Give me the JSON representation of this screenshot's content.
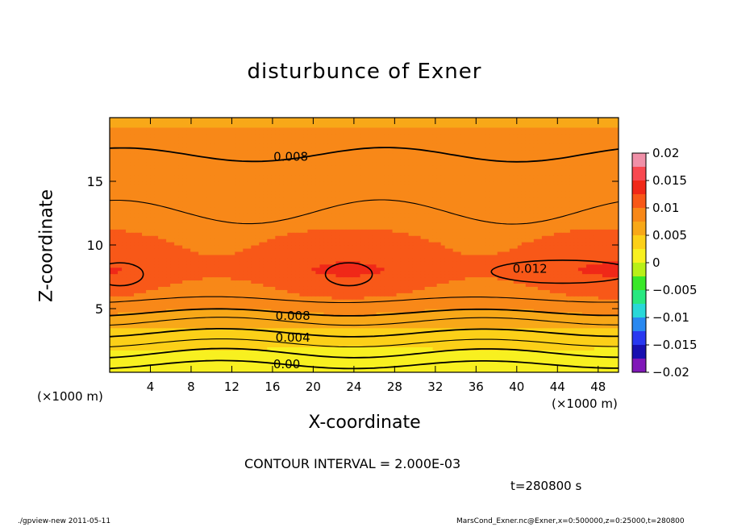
{
  "chart_data": {
    "type": "heatmap",
    "title": "disturbunce of Exner",
    "xlabel": "X-coordinate",
    "ylabel": "Z-coordinate",
    "x_unit_left": "(×1000 m)",
    "x_unit_right": "(×1000 m)",
    "xlim": [
      0,
      50
    ],
    "ylim": [
      0,
      20
    ],
    "x_ticks": [
      4,
      8,
      12,
      16,
      20,
      24,
      28,
      32,
      36,
      40,
      44,
      48
    ],
    "y_ticks": [
      5,
      10,
      15
    ],
    "contour_interval": "CONTOUR INTERVAL = 2.000E-03",
    "contour_labels": [
      {
        "text": "0.008",
        "x": 17.8,
        "z": 17.0
      },
      {
        "text": "0.012",
        "x": 41.3,
        "z": 8.2
      },
      {
        "text": "0.008",
        "x": 18.0,
        "z": 4.5
      },
      {
        "text": "0.004",
        "x": 18.0,
        "z": 2.8
      },
      {
        "text": "0.00",
        "x": 17.4,
        "z": 0.7
      }
    ],
    "colorbar": {
      "min": -0.02,
      "max": 0.02,
      "tick_labels": [
        "0.02",
        "0.015",
        "0.01",
        "0.005",
        "0",
        "−0.005",
        "−0.01",
        "−0.015",
        "−0.02"
      ],
      "tick_values": [
        0.02,
        0.015,
        0.01,
        0.005,
        0,
        -0.005,
        -0.01,
        -0.015,
        -0.02
      ],
      "levels": 16,
      "colors": [
        "#f090a8",
        "#f84850",
        "#f02818",
        "#f85818",
        "#f88818",
        "#f8a818",
        "#fcd018",
        "#f8f020",
        "#b8f018",
        "#38e828",
        "#28e880",
        "#28d8d8",
        "#2888f0",
        "#2838f0",
        "#1810b0",
        "#8018b8"
      ]
    },
    "field_levels": [
      {
        "z": 0,
        "value": 0.0005
      },
      {
        "z": 1.5,
        "value": 0.002
      },
      {
        "z": 3,
        "value": 0.004
      },
      {
        "z": 4.5,
        "value": 0.007
      },
      {
        "z": 6,
        "value": 0.0095
      },
      {
        "z": 8,
        "value": 0.0118
      },
      {
        "z": 10,
        "value": 0.0105
      },
      {
        "z": 13,
        "value": 0.0085
      },
      {
        "z": 17,
        "value": 0.0078
      },
      {
        "z": 20,
        "value": 0.0074
      }
    ]
  },
  "annotations": {
    "time": "t=280800 s",
    "footer_left": "./gpview-new  2011-05-11",
    "footer_right": "MarsCond_Exner.nc@Exner,x=0:500000,z=0:25000,t=280800"
  }
}
